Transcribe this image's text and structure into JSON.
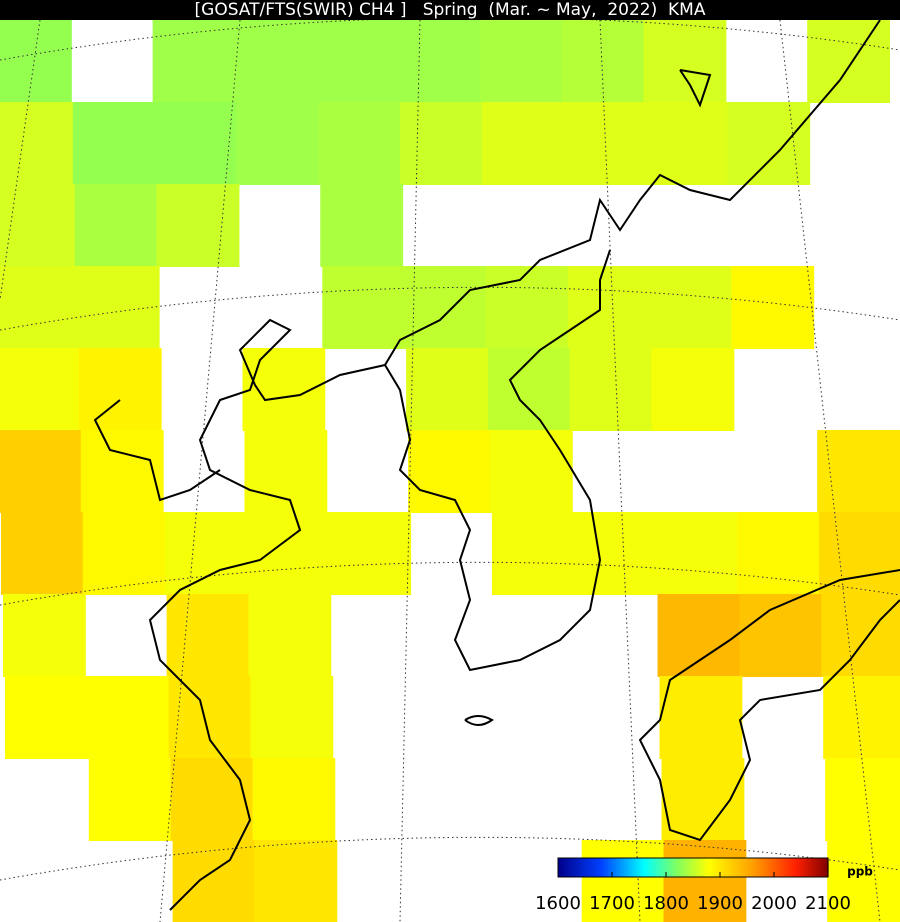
{
  "title": "[GOSAT/FTS(SWIR) CH4 ]   Spring  (Mar. ~ May,  2022)  KMA",
  "colorbar": {
    "unit": "ppb",
    "ticks": [
      1600,
      1700,
      1800,
      1900,
      2000,
      2100
    ]
  },
  "ch4_grid": [
    [
      1830,
      null,
      1835,
      1835,
      1835,
      1835,
      1840,
      1845,
      1860,
      null,
      1860
    ],
    [
      1860,
      1830,
      1830,
      1835,
      1840,
      1855,
      1865,
      1865,
      1865,
      1860,
      null
    ],
    [
      1860,
      1840,
      1855,
      null,
      1840,
      null,
      null,
      null,
      null,
      null,
      null
    ],
    [
      1865,
      1865,
      null,
      null,
      1850,
      1850,
      1855,
      1865,
      1865,
      1885,
      null
    ],
    [
      1875,
      1890,
      null,
      1875,
      null,
      1865,
      1850,
      1865,
      1875,
      null,
      null
    ],
    [
      1920,
      1885,
      null,
      1875,
      null,
      1885,
      1875,
      null,
      null,
      null,
      1900
    ],
    [
      1920,
      1885,
      1875,
      1875,
      1875,
      null,
      1875,
      1875,
      1875,
      1885,
      1910
    ],
    [
      1875,
      null,
      1900,
      1875,
      null,
      null,
      null,
      null,
      1940,
      1930,
      1910
    ],
    [
      1880,
      1880,
      1900,
      1875,
      null,
      null,
      null,
      null,
      1895,
      null,
      1890
    ],
    [
      null,
      1880,
      1910,
      1885,
      null,
      null,
      null,
      null,
      1895,
      null,
      1880
    ],
    [
      null,
      null,
      1910,
      1900,
      null,
      null,
      null,
      1880,
      1945,
      null,
      1880
    ]
  ]
}
